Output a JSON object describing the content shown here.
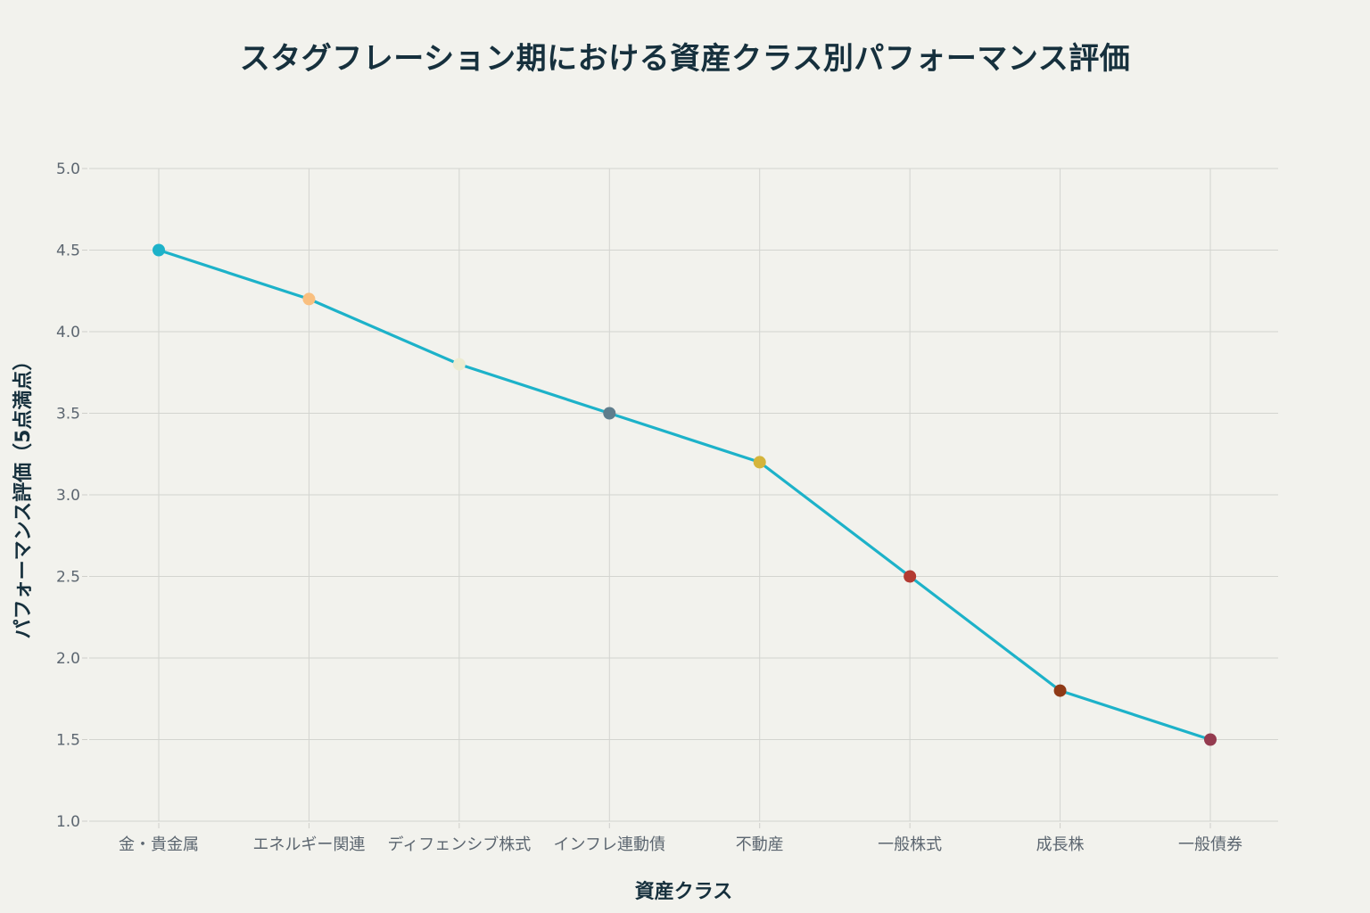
{
  "chart_data": {
    "type": "line",
    "title": "スタグフレーション期における資産クラス別パフォーマンス評価",
    "xlabel": "資産クラス",
    "ylabel": "パフォーマンス評価（5点満点）",
    "categories": [
      "金・貴金属",
      "エネルギー関連",
      "ディフェンシブ株式",
      "インフレ連動債",
      "不動産",
      "一般株式",
      "成長株",
      "一般債券"
    ],
    "values": [
      4.5,
      4.2,
      3.8,
      3.5,
      3.2,
      2.5,
      1.8,
      1.5
    ],
    "marker_colors": [
      "#1db2c9",
      "#f9bf7f",
      "#ecebd0",
      "#5f7d8c",
      "#d4b43b",
      "#b33a32",
      "#8f3a17",
      "#943b4f"
    ],
    "line_color": "#1db2c9",
    "ylim": [
      1.0,
      5.0
    ],
    "yticks": [
      "1.0",
      "1.5",
      "2.0",
      "2.5",
      "3.0",
      "3.5",
      "4.0",
      "4.5",
      "5.0"
    ],
    "grid": true,
    "legend": false
  }
}
